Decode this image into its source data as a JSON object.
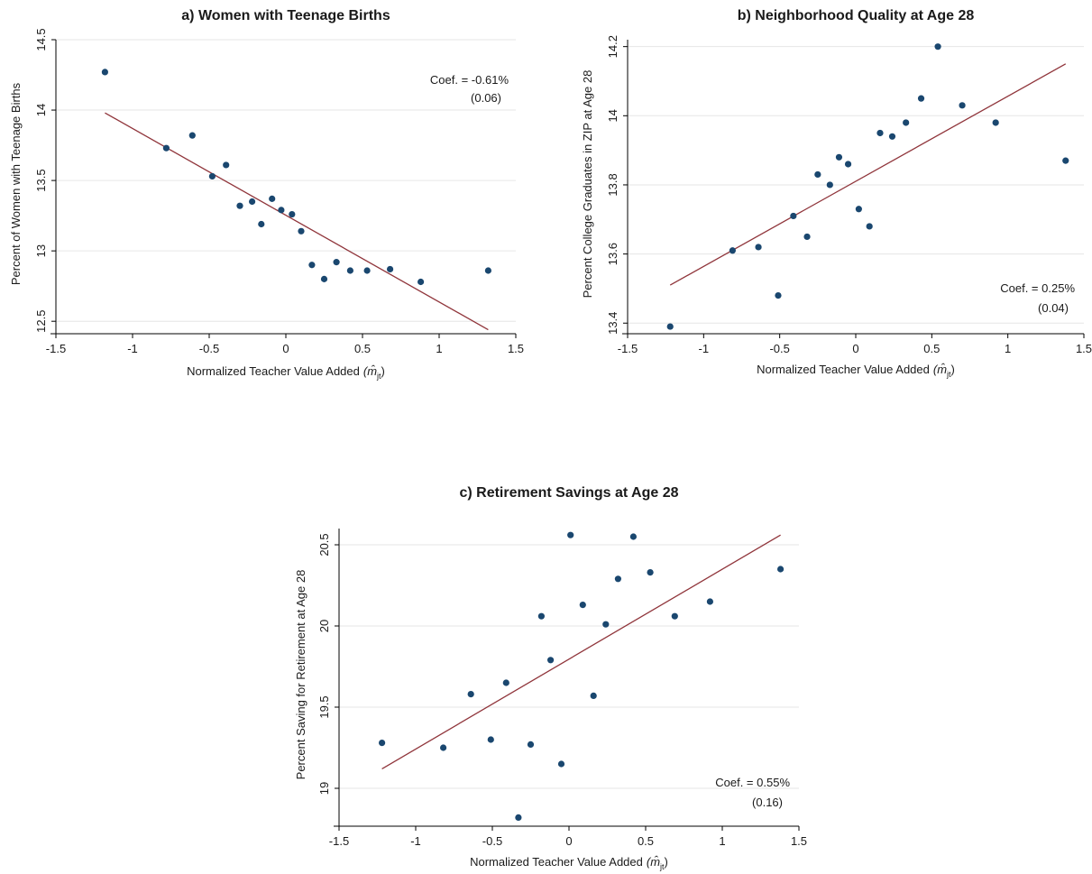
{
  "chart_data": [
    {
      "type": "scatter",
      "title": "a) Women with Teenage Births",
      "xlabel": "Normalized Teacher Value Added",
      "xlabel_math": "(m̂",
      "xlabel_sub": "jt",
      "xlabel_close": ")",
      "ylabel": "Percent of Women with Teenage Births",
      "xlim": [
        -1.5,
        1.5
      ],
      "ylim": [
        12.45,
        14.5
      ],
      "xticks": [
        -1.5,
        -1,
        -0.5,
        0,
        0.5,
        1,
        1.5
      ],
      "xtick_labels": [
        "-1.5",
        "-1",
        "-0.5",
        "0",
        "0.5",
        "1",
        "1.5"
      ],
      "yticks": [
        12.5,
        13,
        13.5,
        14,
        14.5
      ],
      "ytick_labels": [
        "12.5",
        "13",
        "13.5",
        "14",
        "14.5"
      ],
      "x": [
        -1.18,
        -0.78,
        -0.61,
        -0.48,
        -0.39,
        -0.3,
        -0.22,
        -0.16,
        -0.09,
        -0.03,
        0.04,
        0.1,
        0.17,
        0.25,
        0.33,
        0.42,
        0.53,
        0.68,
        0.88,
        1.32
      ],
      "y": [
        14.27,
        13.73,
        13.82,
        13.53,
        13.61,
        13.32,
        13.35,
        13.19,
        13.37,
        13.29,
        13.26,
        13.14,
        12.9,
        12.8,
        12.92,
        12.86,
        12.86,
        12.87,
        12.78,
        12.86
      ],
      "fit_line": {
        "x": [
          -1.18,
          1.32
        ],
        "y": [
          13.98,
          12.44
        ]
      },
      "coef_text": "Coef. = -0.61%",
      "se_text": "(0.06)",
      "marker_color": "#1a476f",
      "line_color": "#90353b",
      "grid": true
    },
    {
      "type": "scatter",
      "title": "b) Neighborhood Quality at Age 28",
      "xlabel": "Normalized Teacher Value Added",
      "xlabel_math": "(m̂",
      "xlabel_sub": "jt",
      "xlabel_close": ")",
      "ylabel": "Percent College Graduates in ZIP at Age 28",
      "xlim": [
        -1.5,
        1.5
      ],
      "ylim": [
        13.385,
        14.22
      ],
      "xticks": [
        -1.5,
        -1,
        -0.5,
        0,
        0.5,
        1,
        1.5
      ],
      "xtick_labels": [
        "-1.5",
        "-1",
        "-0.5",
        "0",
        "0.5",
        "1",
        "1.5"
      ],
      "yticks": [
        13.4,
        13.6,
        13.8,
        14,
        14.2
      ],
      "ytick_labels": [
        "13.4",
        "13.6",
        "13.8",
        "14",
        "14.2"
      ],
      "x": [
        -1.22,
        -0.81,
        -0.64,
        -0.51,
        -0.41,
        -0.32,
        -0.25,
        -0.17,
        -0.11,
        -0.05,
        0.02,
        0.09,
        0.16,
        0.24,
        0.33,
        0.43,
        0.54,
        0.7,
        0.92,
        1.38
      ],
      "y": [
        13.39,
        13.61,
        13.62,
        13.48,
        13.71,
        13.65,
        13.83,
        13.8,
        13.88,
        13.86,
        13.73,
        13.68,
        13.95,
        13.94,
        13.98,
        14.05,
        14.2,
        14.03,
        13.98,
        13.87
      ],
      "fit_line": {
        "x": [
          -1.22,
          1.38
        ],
        "y": [
          13.51,
          14.15
        ]
      },
      "coef_text": "Coef. = 0.25%",
      "se_text": "(0.04)",
      "marker_color": "#1a476f",
      "line_color": "#90353b",
      "grid": true
    },
    {
      "type": "scatter",
      "title": "c) Retirement Savings at Age 28",
      "xlabel": "Normalized Teacher Value Added",
      "xlabel_math": "(m̂",
      "xlabel_sub": "jt",
      "xlabel_close": ")",
      "ylabel": "Percent Saving for Retirement at Age 28",
      "xlim": [
        -1.5,
        1.5
      ],
      "ylim": [
        18.8,
        20.6
      ],
      "xticks": [
        -1.5,
        -1,
        -0.5,
        0,
        0.5,
        1,
        1.5
      ],
      "xtick_labels": [
        "-1.5",
        "-1",
        "-0.5",
        "0",
        "0.5",
        "1",
        "1.5"
      ],
      "yticks": [
        19,
        19.5,
        20,
        20.5
      ],
      "ytick_labels": [
        "19",
        "19.5",
        "20",
        "20.5"
      ],
      "x": [
        -1.22,
        -0.82,
        -0.64,
        -0.51,
        -0.41,
        -0.33,
        -0.25,
        -0.18,
        -0.12,
        -0.05,
        0.01,
        0.09,
        0.24,
        0.32,
        0.42,
        0.53,
        0.69,
        0.92,
        1.38,
        0.16
      ],
      "y": [
        19.28,
        19.25,
        19.58,
        19.3,
        19.65,
        18.82,
        19.27,
        20.06,
        19.79,
        19.15,
        20.56,
        20.13,
        20.01,
        20.29,
        20.55,
        20.33,
        20.06,
        20.15,
        20.35,
        19.57
      ],
      "fit_line": {
        "x": [
          -1.22,
          1.38
        ],
        "y": [
          19.12,
          20.56
        ]
      },
      "coef_text": "Coef. = 0.55%",
      "se_text": "(0.16)",
      "marker_color": "#1a476f",
      "line_color": "#90353b",
      "grid": true
    }
  ]
}
